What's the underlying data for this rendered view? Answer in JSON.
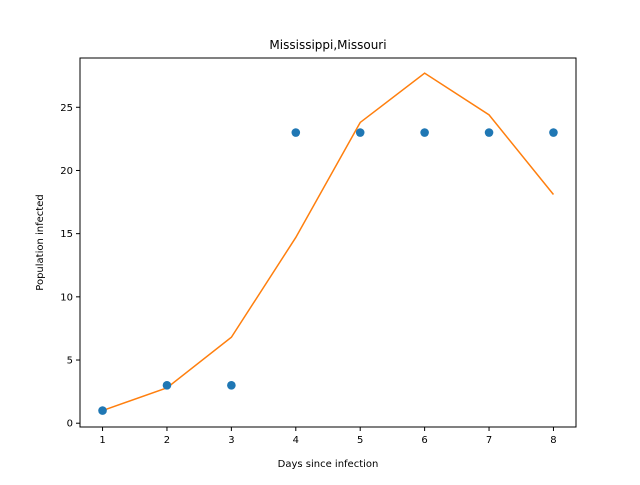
{
  "chart_data": {
    "type": "scatter",
    "title": "Mississippi,Missouri",
    "xlabel": "Days since infection",
    "ylabel": "Population infected",
    "xlim": [
      0.65,
      8.35
    ],
    "ylim": [
      -0.3,
      28.9
    ],
    "xticks": [
      1,
      2,
      3,
      4,
      5,
      6,
      7,
      8
    ],
    "yticks": [
      0,
      5,
      10,
      15,
      20,
      25
    ],
    "grid": false,
    "series": [
      {
        "kind": "scatter",
        "color": "#1f77b4",
        "x": [
          1,
          2,
          3,
          4,
          5,
          6,
          7,
          8
        ],
        "y": [
          1,
          3,
          3,
          23,
          23,
          23,
          23,
          23
        ]
      },
      {
        "kind": "line",
        "color": "#ff7f0e",
        "x": [
          1,
          2,
          3,
          4,
          5,
          6,
          7,
          8
        ],
        "y": [
          1.0,
          2.8,
          6.8,
          14.7,
          23.8,
          27.7,
          24.4,
          18.1
        ]
      }
    ]
  }
}
